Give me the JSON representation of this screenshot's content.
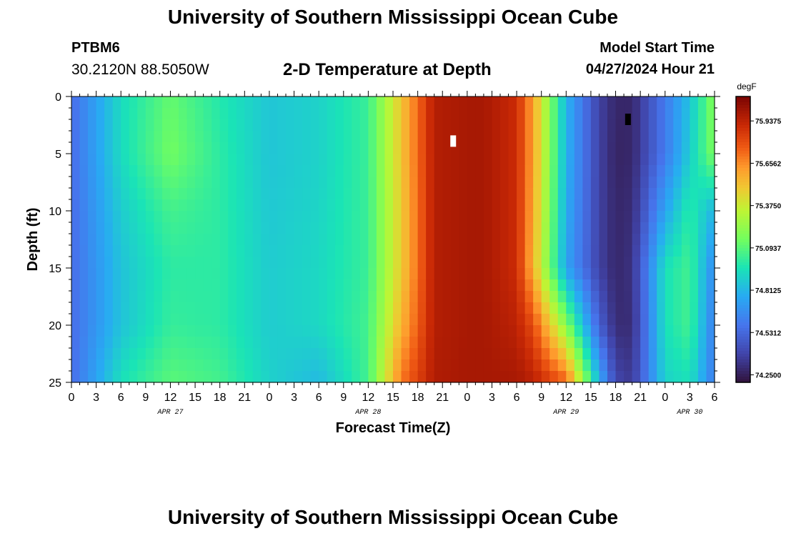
{
  "page": {
    "title_top": "University of Southern Mississippi Ocean Cube",
    "title_bottom": "University of Southern Mississippi Ocean Cube",
    "station_id": "PTBM6",
    "coordinates": "30.2120N  88.5050W",
    "subtitle": "2-D Temperature at Depth",
    "model_start_label": "Model Start Time",
    "model_start_value": "04/27/2024 Hour 21"
  },
  "chart_data": {
    "type": "heatmap",
    "title": "2-D Temperature at Depth",
    "xlabel": "Forecast Time(Z)",
    "ylabel": "Depth (ft)",
    "colorbar_unit": "degF",
    "colorbar_ticks": [
      "75.9375",
      "75.6562",
      "75.3750",
      "75.0937",
      "74.8125",
      "74.5312",
      "74.2500"
    ],
    "zlim": [
      74.2,
      76.1
    ],
    "ylim": [
      0,
      25
    ],
    "y_ticks": [
      0,
      5,
      10,
      15,
      20,
      25
    ],
    "xlim_hours": [
      0,
      78
    ],
    "x_tick_labels": [
      "0",
      "3",
      "6",
      "9",
      "12",
      "15",
      "18",
      "21",
      "0",
      "3",
      "6",
      "9",
      "12",
      "15",
      "18",
      "21",
      "0",
      "3",
      "6",
      "9",
      "12",
      "15",
      "18",
      "21",
      "0",
      "3",
      "6"
    ],
    "date_labels": [
      {
        "label": "APR 27",
        "hour": 12
      },
      {
        "label": "APR 28",
        "hour": 36
      },
      {
        "label": "APR 29",
        "hour": 60
      },
      {
        "label": "APR 30",
        "hour": 75
      }
    ],
    "depth_levels": [
      0,
      5,
      10,
      15,
      20,
      25
    ],
    "times_hours": [
      0,
      6,
      12,
      18,
      24,
      30,
      36,
      40,
      44,
      48,
      50,
      54,
      56,
      60,
      64,
      66,
      68,
      72,
      75,
      78
    ],
    "temperature_degF": [
      [
        74.55,
        74.93,
        75.12,
        74.98,
        74.86,
        74.9,
        75.03,
        75.5,
        75.96,
        75.99,
        75.99,
        75.9,
        75.6,
        74.8,
        74.38,
        74.28,
        74.28,
        74.6,
        74.85,
        75.2
      ],
      [
        74.55,
        74.93,
        75.15,
        75.0,
        74.86,
        74.9,
        75.03,
        75.5,
        75.96,
        75.99,
        75.99,
        75.9,
        75.6,
        74.8,
        74.38,
        74.27,
        74.28,
        74.6,
        74.88,
        75.18
      ],
      [
        74.55,
        74.88,
        75.05,
        75.0,
        74.87,
        74.91,
        75.03,
        75.48,
        75.96,
        75.99,
        75.99,
        75.9,
        75.58,
        74.78,
        74.38,
        74.28,
        74.3,
        74.75,
        75.0,
        74.8
      ],
      [
        74.55,
        74.85,
        75.0,
        75.0,
        74.88,
        74.92,
        75.03,
        75.48,
        75.96,
        75.99,
        75.99,
        75.9,
        75.55,
        74.75,
        74.38,
        74.28,
        74.32,
        74.95,
        75.05,
        74.65
      ],
      [
        74.55,
        74.85,
        75.02,
        75.0,
        74.88,
        74.92,
        75.05,
        75.55,
        75.96,
        75.99,
        75.99,
        75.94,
        75.8,
        75.2,
        74.5,
        74.3,
        74.3,
        74.95,
        75.05,
        74.6
      ],
      [
        74.55,
        74.95,
        75.1,
        75.05,
        74.9,
        74.82,
        75.05,
        75.7,
        75.97,
        75.99,
        75.99,
        75.99,
        75.95,
        75.75,
        74.8,
        74.4,
        74.35,
        74.9,
        74.95,
        74.6
      ]
    ],
    "markers": [
      {
        "hour": 46.3,
        "depth": 3.9,
        "color": "#ffffff"
      },
      {
        "hour": 67.5,
        "depth": 2.0,
        "color": "#000000"
      }
    ]
  }
}
